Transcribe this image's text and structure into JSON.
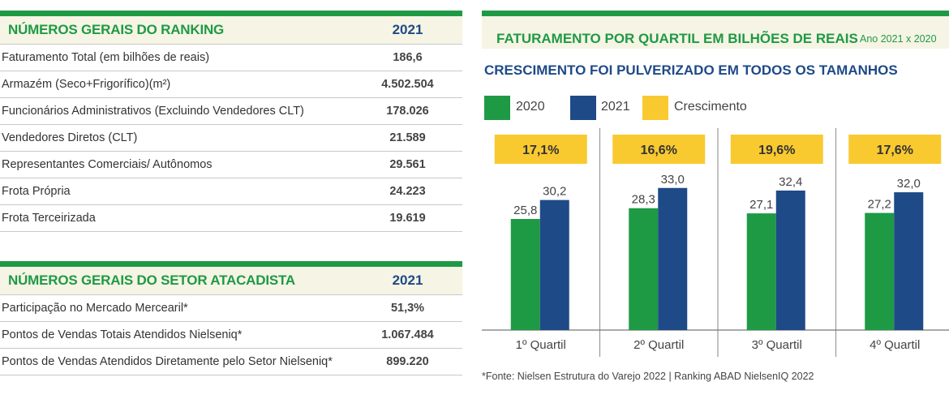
{
  "table_ranking": {
    "title": "NÚMEROS GERAIS DO RANKING",
    "year": "2021",
    "rows": [
      {
        "label": "Faturamento Total (em bilhões de reais)",
        "value": "186,6"
      },
      {
        "label": "Armazém (Seco+Frigorífico)(m²)",
        "value": "4.502.504"
      },
      {
        "label": "Funcionários Administrativos (Excluindo Vendedores CLT)",
        "value": "178.026"
      },
      {
        "label": "Vendedores Diretos (CLT)",
        "value": "21.589"
      },
      {
        "label": "Representantes Comerciais/ Autônomos",
        "value": "29.561"
      },
      {
        "label": "Frota Própria",
        "value": "24.223"
      },
      {
        "label": "Frota Terceirizada",
        "value": "19.619"
      }
    ]
  },
  "table_setor": {
    "title": "NÚMEROS GERAIS DO SETOR ATACADISTA",
    "year": "2021",
    "rows": [
      {
        "label": "Participação no Mercado Mercearil*",
        "value": "51,3%"
      },
      {
        "label": "Pontos de Vendas Totais Atendidos Nielseniq*",
        "value": "1.067.484"
      },
      {
        "label": "Pontos de Vendas Atendidos Diretamente pelo Setor Nielseniq*",
        "value": "899.220"
      }
    ]
  },
  "chart_data": {
    "type": "bar",
    "title": "FATURAMENTO POR QUARTIL EM BILHÕES DE REAIS",
    "subtitle": "Ano 2021 x 2020",
    "headline": "CRESCIMENTO FOI PULVERIZADO EM TODOS OS TAMANHOS",
    "categories": [
      "1º Quartil",
      "2º Quartil",
      "3º Quartil",
      "4º Quartil"
    ],
    "series": [
      {
        "name": "2020",
        "color": "#1e9a45",
        "values": [
          25.8,
          28.3,
          27.1,
          27.2
        ],
        "labels": [
          "25,8",
          "28,3",
          "27,1",
          "27,2"
        ]
      },
      {
        "name": "2021",
        "color": "#1e4a87",
        "values": [
          30.2,
          33.0,
          32.4,
          32.0
        ],
        "labels": [
          "30,2",
          "33,0",
          "32,4",
          "32,0"
        ]
      }
    ],
    "growth": {
      "name": "Crescimento",
      "color": "#f9c930",
      "labels": [
        "17,1%",
        "16,6%",
        "19,6%",
        "17,6%"
      ]
    },
    "ylim": [
      0,
      36
    ],
    "grid": false,
    "legend": "top"
  },
  "source": "*Fonte: Nielsen Estrutura do Varejo 2022 | Ranking ABAD NielsenIQ 2022"
}
